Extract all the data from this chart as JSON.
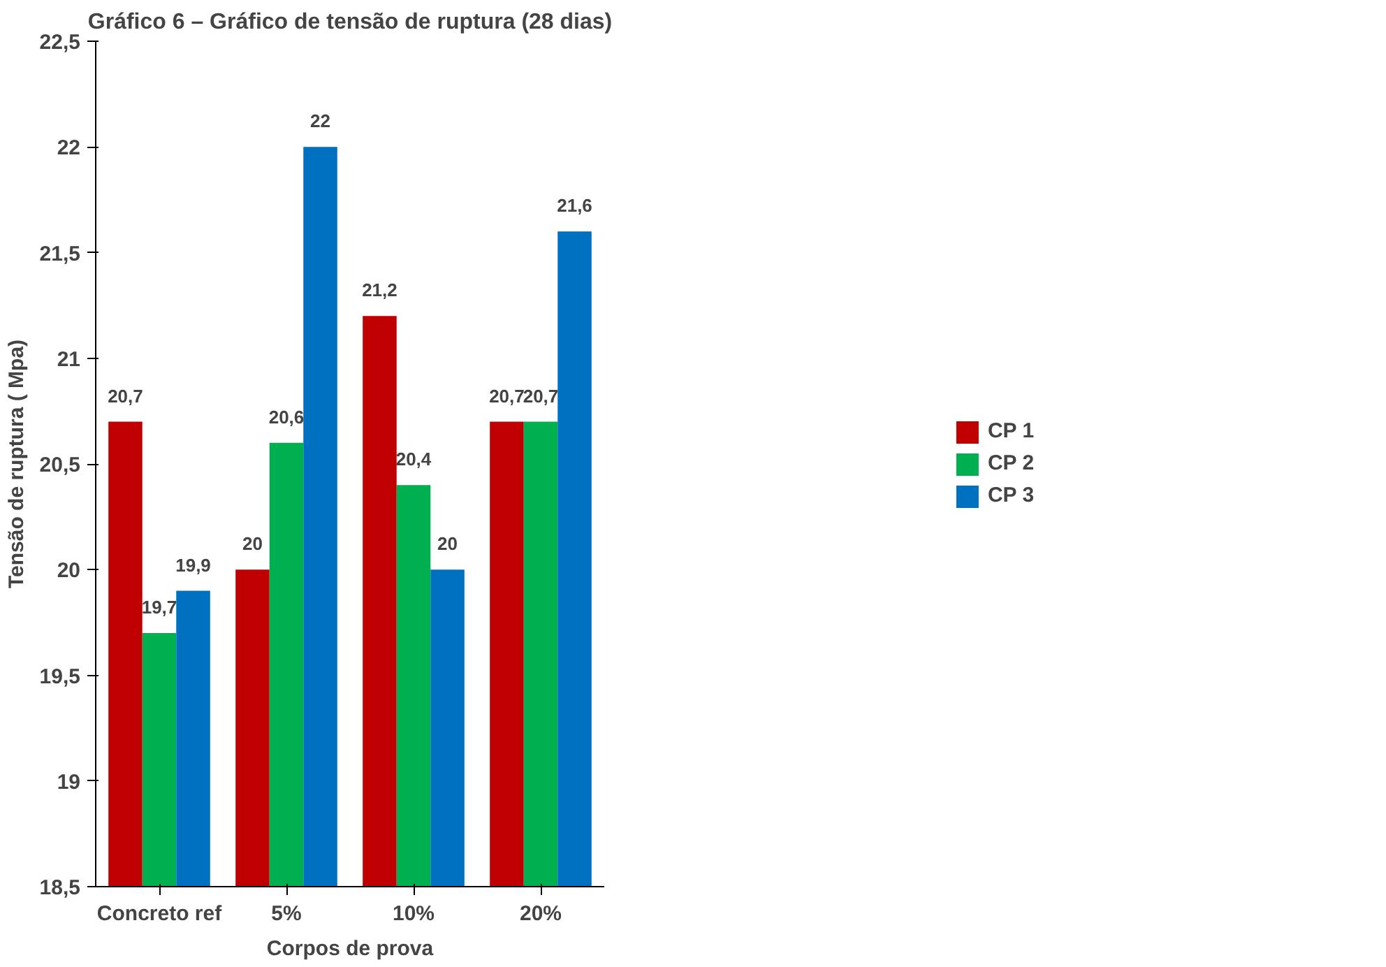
{
  "chart_data": {
    "type": "bar",
    "title": "Gráfico 6 – Gráfico de tensão de ruptura (28 dias)",
    "xlabel": "Corpos de prova",
    "ylabel": "Tensão de ruptura ( Mpa)",
    "categories": [
      "Concreto ref",
      "5%",
      "10%",
      "20%"
    ],
    "series": [
      {
        "name": "CP 1",
        "color": "#c00000",
        "values": [
          20.7,
          20,
          21.2,
          20.7
        ],
        "value_labels": [
          "20,7",
          "20",
          "21,2",
          "20,7"
        ]
      },
      {
        "name": "CP 2",
        "color": "#00b050",
        "values": [
          19.7,
          20.6,
          20.4,
          20.7
        ],
        "value_labels": [
          "19,7",
          "20,6",
          "20,4",
          "20,7"
        ]
      },
      {
        "name": "CP 3",
        "color": "#0070c0",
        "values": [
          19.9,
          22,
          20,
          21.6
        ],
        "value_labels": [
          "19,9",
          "22",
          "20",
          "21,6"
        ]
      }
    ],
    "ylim": [
      18.5,
      22.5
    ],
    "yticks": [
      {
        "value": 18.5,
        "label": "18,5"
      },
      19,
      {
        "value": 19.5,
        "label": "19,5"
      },
      20,
      {
        "value": 20.5,
        "label": "20,5"
      },
      21,
      {
        "value": 21.5,
        "label": "21,5"
      },
      22,
      {
        "value": 22.5,
        "label": "22,5"
      }
    ],
    "legend": "right",
    "grid": false
  }
}
